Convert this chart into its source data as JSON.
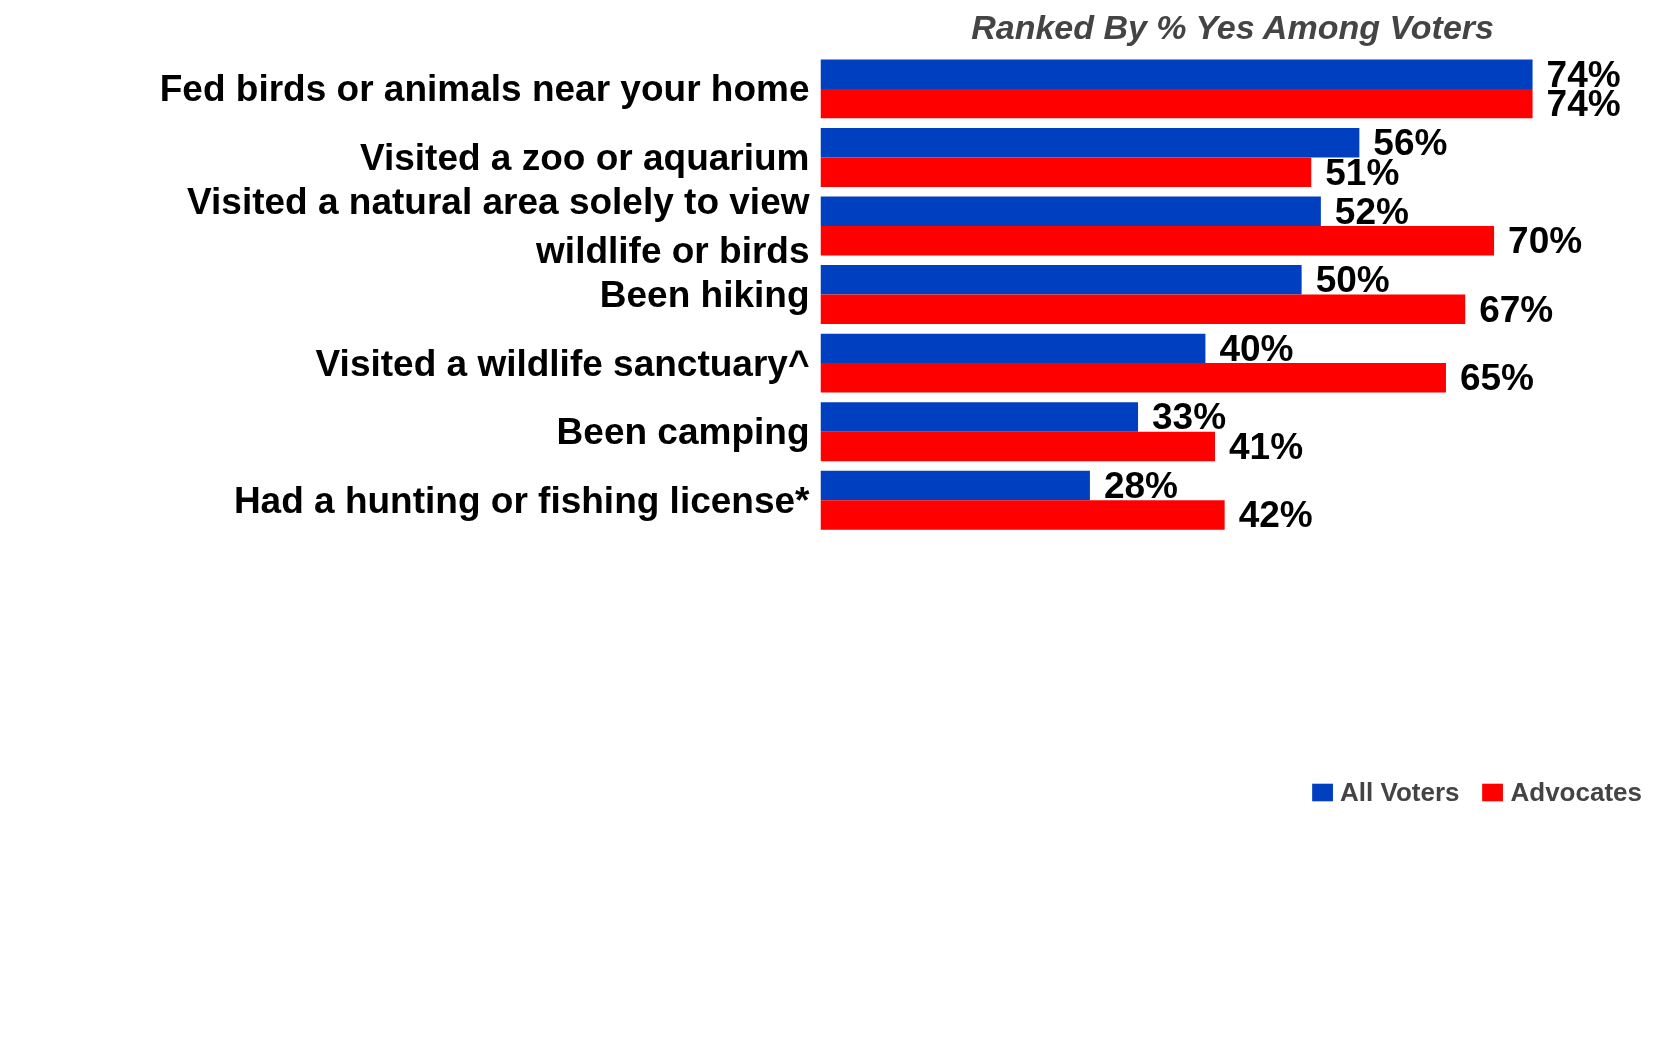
{
  "chart_data": {
    "type": "bar",
    "orientation": "horizontal",
    "title": "Ranked By % Yes Among Voters",
    "categories": [
      "Fed birds or animals near your home",
      "Visited a zoo or aquarium",
      "Visited a natural area solely to view wildlife or birds",
      "Been hiking",
      "Visited a wildlife sanctuary^",
      "Been camping",
      "Had a hunting or fishing license*"
    ],
    "series": [
      {
        "name": "All Voters",
        "color": "#0040c0",
        "values": [
          74,
          56,
          52,
          50,
          40,
          33,
          28
        ],
        "value_labels": [
          "74%",
          "56%",
          "52%",
          "50%",
          "40%",
          "33%",
          "28%"
        ]
      },
      {
        "name": "Advocates",
        "color": "#ff0000",
        "values": [
          74,
          51,
          70,
          67,
          65,
          41,
          42
        ],
        "value_labels": [
          "74%",
          "51%",
          "70%",
          "67%",
          "65%",
          "41%",
          "42%"
        ]
      }
    ],
    "legend": "bottom",
    "grid": false,
    "tick_labels": "y"
  }
}
